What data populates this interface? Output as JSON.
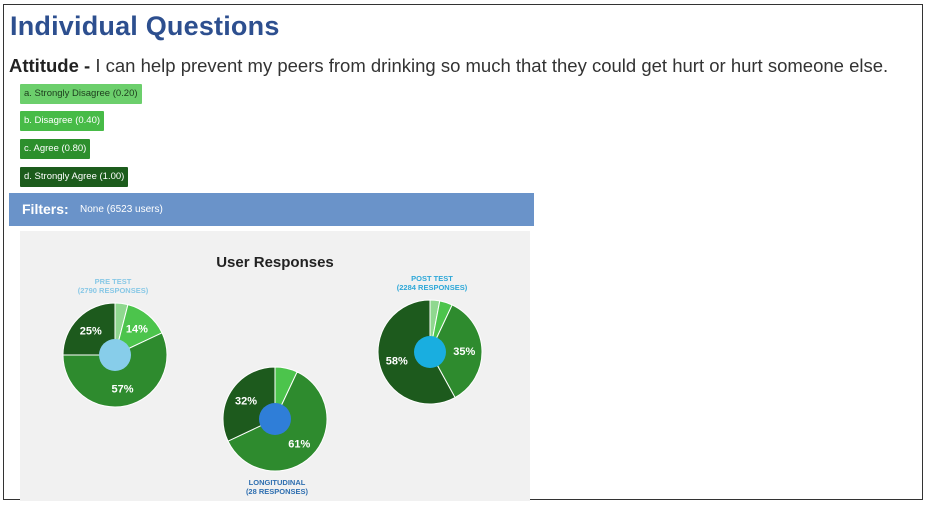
{
  "header": {
    "title": "Individual Questions"
  },
  "question": {
    "label": "Attitude -",
    "text": " I can help prevent my peers from drinking so much that they could get hurt or hurt someone else."
  },
  "options": [
    {
      "label": "a. Strongly Disagree (0.20)",
      "color": "#6ccf6c"
    },
    {
      "label": "b. Disagree (0.40)",
      "color": "#47bb47"
    },
    {
      "label": "c. Agree (0.80)",
      "color": "#2c8f2c"
    },
    {
      "label": "d. Strongly Agree (1.00)",
      "color": "#1c5c1c"
    }
  ],
  "filters": {
    "label": "Filters:",
    "value": "None (6523 users)"
  },
  "chart_data": {
    "type": "pie",
    "title": "User Responses",
    "categories": [
      "a. Strongly Disagree (0.20)",
      "b. Disagree (0.40)",
      "c. Agree (0.80)",
      "d. Strongly Agree (1.00)"
    ],
    "colors": [
      "#8fd88f",
      "#4cc44c",
      "#2e8b2e",
      "#1d5a1d"
    ],
    "center_colors": {
      "pre": "#87cdea",
      "longitudinal": "#2f7ed8",
      "post": "#19aee0"
    },
    "pies": [
      {
        "key": "pre",
        "name": "PRE TEST",
        "sublabel": "(2790 RESPONSES)",
        "values": [
          4,
          14,
          57,
          25
        ],
        "labels": [
          "",
          "14%",
          "57%",
          "25%"
        ],
        "label_color": "#88c8e6"
      },
      {
        "key": "longitudinal",
        "name": "LONGITUDINAL",
        "sublabel": "(28 RESPONSES)",
        "values": [
          0,
          7,
          61,
          32
        ],
        "labels": [
          "",
          "",
          "61%",
          "32%"
        ],
        "label_color": "#2f6fb0"
      },
      {
        "key": "post",
        "name": "POST TEST",
        "sublabel": "(2284 RESPONSES)",
        "values": [
          3,
          4,
          35,
          58
        ],
        "labels": [
          "",
          "",
          "35%",
          "58%"
        ],
        "label_color": "#2ea8d8"
      }
    ]
  }
}
